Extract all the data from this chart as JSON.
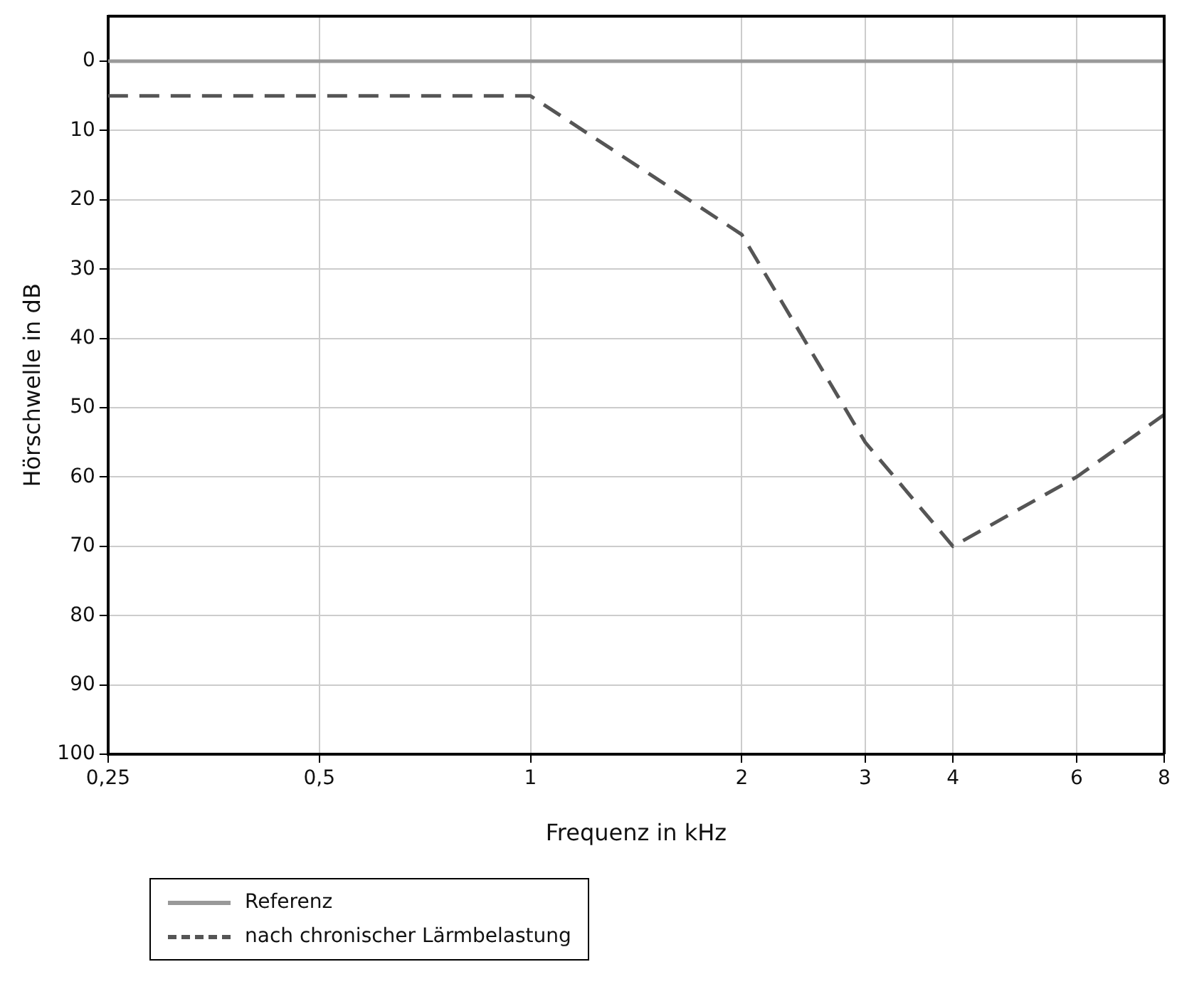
{
  "chart_data": {
    "type": "line",
    "xlabel": "Frequenz in kHz",
    "ylabel": "Hörschwelle in dB",
    "log": "x",
    "xlim": [
      0.25,
      8
    ],
    "xticks": [
      {
        "value": 0.25,
        "label": "0,25"
      },
      {
        "value": 0.5,
        "label": "0,5"
      },
      1,
      2,
      3,
      4,
      6,
      8
    ],
    "ylim": [
      100,
      -6.5
    ],
    "yticks": [
      0,
      10,
      20,
      30,
      40,
      50,
      60,
      70,
      80,
      90,
      100
    ],
    "grid": true,
    "legend": "bottom left",
    "marker": "none",
    "series": [
      {
        "name": "Referenz",
        "color": "#999999",
        "line_style": "solid",
        "x": [
          0.25,
          8
        ],
        "values": [
          0,
          0
        ]
      },
      {
        "name": "nach chronischer Lärmbelastung",
        "color": "#555555",
        "line_style": "dashed",
        "x": [
          0.25,
          1,
          2,
          3,
          4,
          6,
          8
        ],
        "values": [
          5,
          5,
          25,
          55,
          70,
          60,
          51
        ]
      }
    ]
  }
}
